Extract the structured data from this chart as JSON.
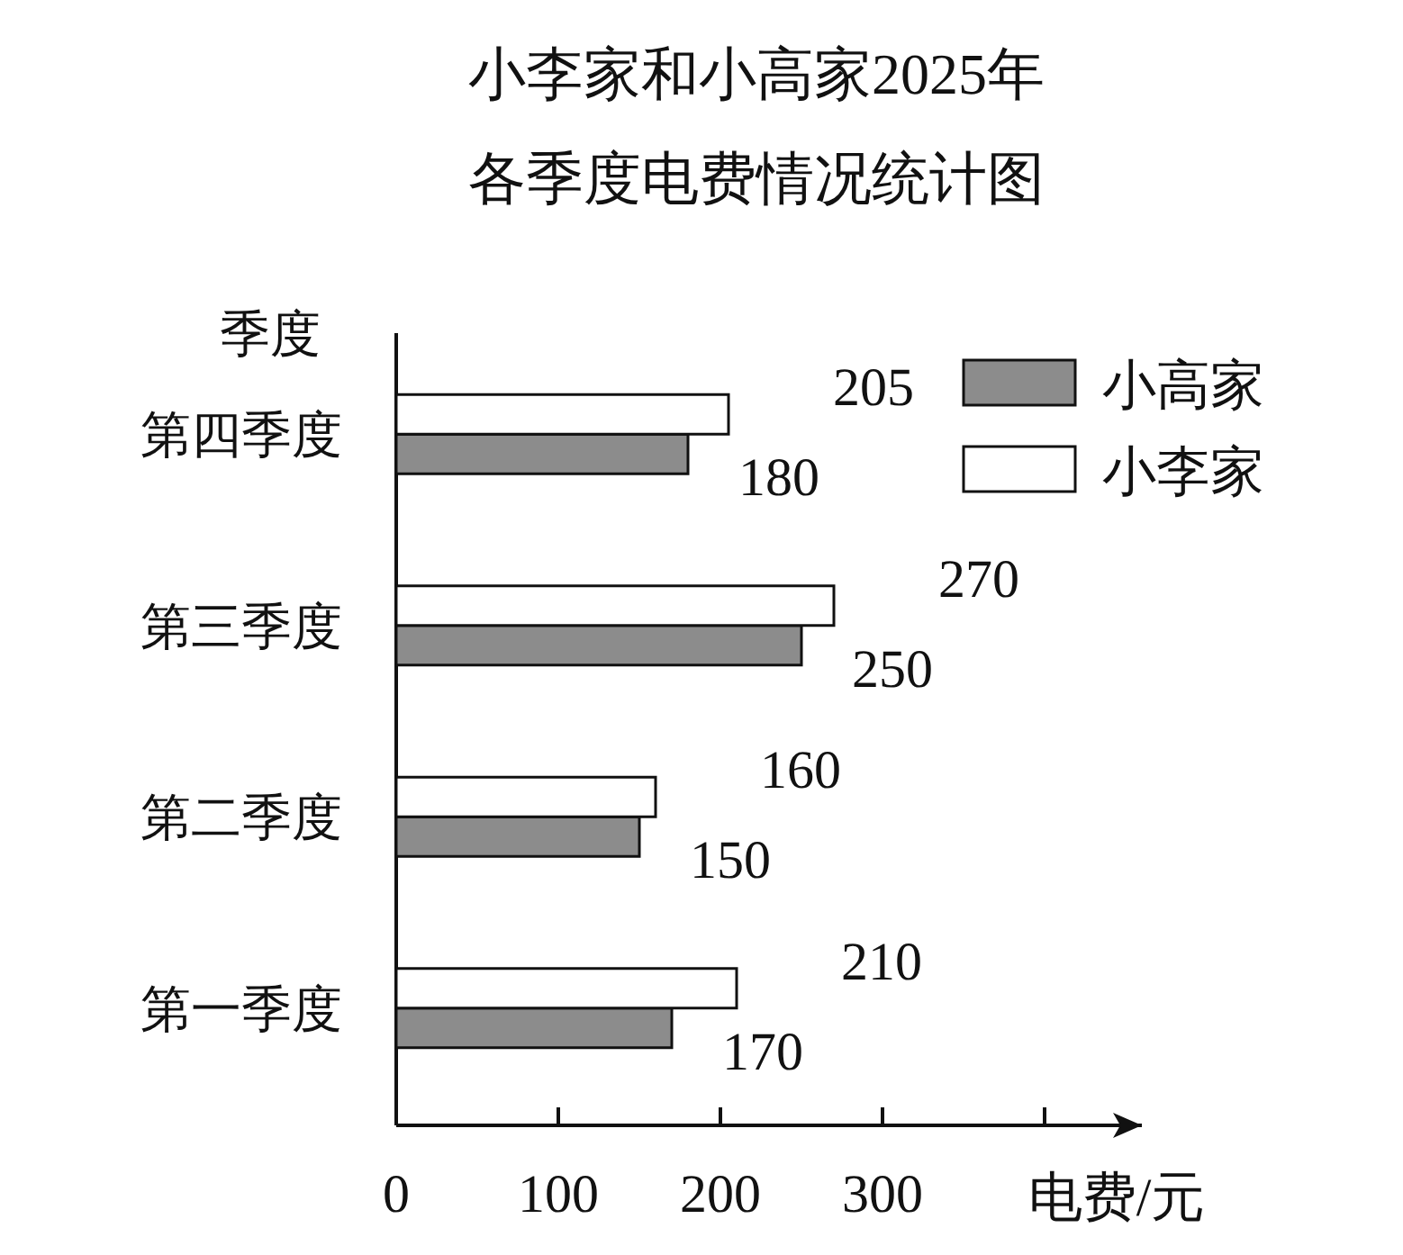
{
  "chart_data": {
    "type": "bar",
    "orientation": "horizontal",
    "title": "小李家和小高家2025年",
    "subtitle": "各季度电费情况统计图",
    "ylabel": "季度",
    "xlabel": "电费/元",
    "categories": [
      "第四季度",
      "第三季度",
      "第二季度",
      "第一季度"
    ],
    "series": [
      {
        "name": "小高家",
        "color": "#8c8c8c",
        "values": [
          180,
          250,
          150,
          170
        ]
      },
      {
        "name": "小李家",
        "color": "#ffffff",
        "values": [
          205,
          270,
          160,
          210
        ]
      }
    ],
    "xlim": [
      0,
      460
    ],
    "xticks": [
      0,
      100,
      200,
      300,
      {
        "value": 400,
        "label": null
      }
    ],
    "data_labels": true,
    "legend": "top right"
  }
}
